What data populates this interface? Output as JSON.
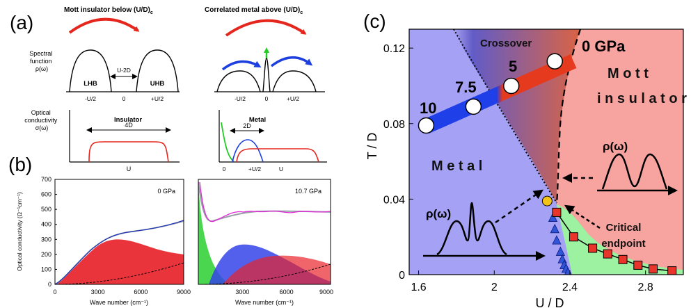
{
  "panel_a": {
    "label": "(a)",
    "left_title": "Mott insulator below (U/D)",
    "left_title_sub": "c",
    "right_title": "Correlated metal above (U/D)",
    "right_title_sub": "c",
    "spectral_label": [
      "Spectral",
      "function",
      "ρ(ω)"
    ],
    "optical_label": [
      "Optical",
      "conductivity",
      "σ(ω)"
    ],
    "lhb": "LHB",
    "uhb": "UHB",
    "gap_label": "U-2D",
    "ticks_left": [
      "-U/2",
      "0",
      "+U/2"
    ],
    "ticks_right": [
      "-U/2",
      "0",
      "+U/2"
    ],
    "insulator": "Insulator",
    "insulator_width": "4D",
    "insulator_axis": "U",
    "metal": "Metal",
    "metal_width": "2D",
    "metal_axis": [
      "0",
      "+U/2",
      "U"
    ]
  },
  "panel_b": {
    "label": "(b)",
    "ylabel": "Optical conductivity (Ω⁻¹cm⁻¹)",
    "xlabel": "Wave number (cm⁻¹)",
    "left_pressure": "0 GPa",
    "right_pressure": "10.7 GPa",
    "yticks": [
      "0",
      "100",
      "200",
      "300",
      "400",
      "500",
      "600",
      "700"
    ],
    "xticks_left": [
      "0",
      "3000",
      "6000",
      "9000"
    ],
    "xticks_right": [
      "3000",
      "6000",
      "9000"
    ]
  },
  "panel_c": {
    "label": "(c)",
    "ylabel": "T / D",
    "xlabel": "U / D",
    "xticks": [
      "1.6",
      "2",
      "2.4",
      "2.8"
    ],
    "yticks": [
      "0",
      "0.04",
      "0.08",
      "0.12"
    ],
    "crossover": "Crossover",
    "metal": "M e t a l",
    "mott_1": "M o t t",
    "mott_2": "i n s u l a t o r",
    "rho": "ρ(ω)",
    "critical_1": "Critical",
    "critical_2": "endpoint",
    "pressure_labels": [
      "10",
      "7.5",
      "5",
      "0 GPa"
    ],
    "colors": {
      "metal": "#a5a2f5",
      "insulator": "#f7a3a0",
      "critical": "#f2c318",
      "squares": "#e8342a",
      "triangles": "#2f55d6"
    }
  },
  "chart_data": {
    "type": "scatter",
    "xlabel": "U / D",
    "ylabel": "T / D",
    "xlim": [
      1.55,
      3.0
    ],
    "ylim": [
      0,
      0.13
    ],
    "series": [
      {
        "values": [
          [
            1.64,
            0.079
          ],
          [
            1.89,
            0.089
          ],
          [
            2.09,
            0.1
          ],
          [
            2.32,
            0.113
          ]
        ]
      },
      {
        "values": [
          [
            2.28,
            0.039
          ]
        ]
      },
      {
        "values": [
          [
            2.33,
            0.033
          ],
          [
            2.42,
            0.02
          ],
          [
            2.52,
            0.014
          ],
          [
            2.6,
            0.011
          ],
          [
            2.68,
            0.008
          ],
          [
            2.76,
            0.005
          ],
          [
            2.84,
            0.003
          ],
          [
            2.94,
            0.002
          ]
        ]
      },
      {
        "values": [
          [
            2.31,
            0.03
          ],
          [
            2.32,
            0.024
          ],
          [
            2.33,
            0.018
          ],
          [
            2.35,
            0.012
          ],
          [
            2.36,
            0.008
          ],
          [
            2.37,
            0.005
          ],
          [
            2.38,
            0.003
          ],
          [
            2.39,
            0.001
          ]
        ]
      }
    ]
  }
}
